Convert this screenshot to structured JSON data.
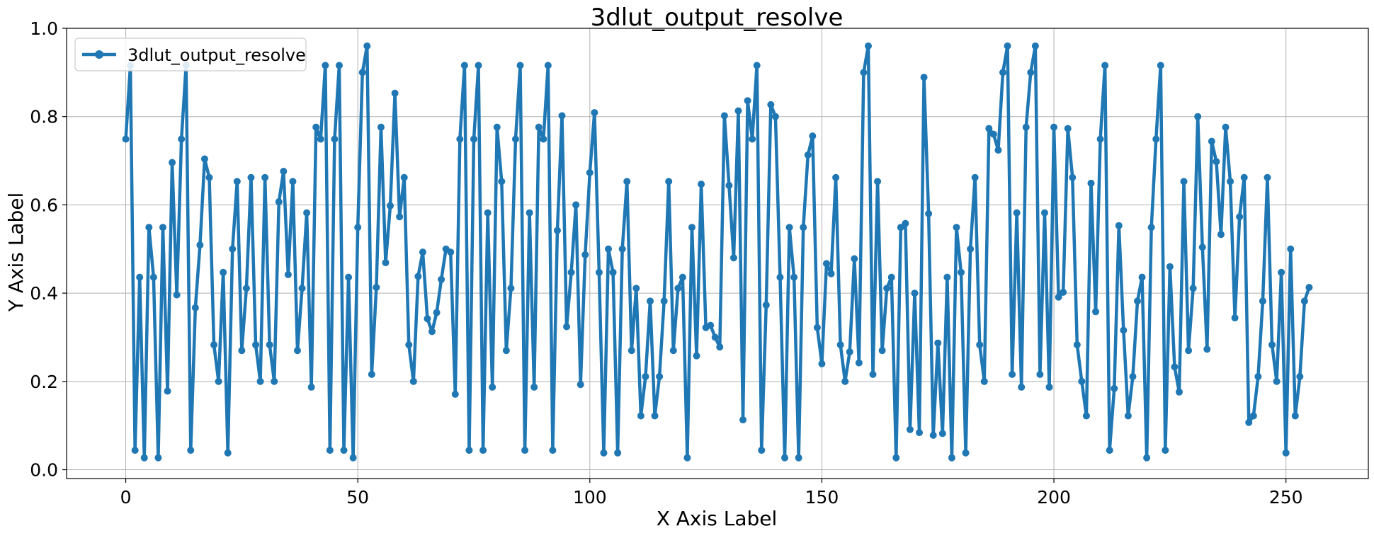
{
  "chart_data": {
    "type": "line",
    "title": "3dlut_output_resolve",
    "xlabel": "X Axis Label",
    "ylabel": "Y Axis Label",
    "xlim": [
      -12.75,
      267.75
    ],
    "ylim": [
      -0.02,
      1.0
    ],
    "xticks": [
      0,
      50,
      100,
      150,
      200,
      250
    ],
    "xtick_labels": [
      "0",
      "50",
      "100",
      "150",
      "200",
      "250"
    ],
    "yticks": [
      0.0,
      0.2,
      0.4,
      0.6,
      0.8,
      1.0
    ],
    "ytick_labels": [
      "0.0",
      "0.2",
      "0.4",
      "0.6",
      "0.8",
      "1.0"
    ],
    "grid": true,
    "legend_position": "top-left",
    "series": [
      {
        "name": "3dlut_output_resolve",
        "color": "#1f77b4",
        "marker": "circle",
        "x": [
          0,
          1,
          2,
          3,
          4,
          5,
          6,
          7,
          8,
          9,
          10,
          11,
          12,
          13,
          14,
          15,
          16,
          17,
          18,
          19,
          20,
          21,
          22,
          23,
          24,
          25,
          26,
          27,
          28,
          29,
          30,
          31,
          32,
          33,
          34,
          35,
          36,
          37,
          38,
          39,
          40,
          41,
          42,
          43,
          44,
          45,
          46,
          47,
          48,
          49,
          50,
          51,
          52,
          53,
          54,
          55,
          56,
          57,
          58,
          59,
          60,
          61,
          62,
          63,
          64,
          65,
          66,
          67,
          68,
          69,
          70,
          71,
          72,
          73,
          74,
          75,
          76,
          77,
          78,
          79,
          80,
          81,
          82,
          83,
          84,
          85,
          86,
          87,
          88,
          89,
          90,
          91,
          92,
          93,
          94,
          95,
          96,
          97,
          98,
          99,
          100,
          101,
          102,
          103,
          104,
          105,
          106,
          107,
          108,
          109,
          110,
          111,
          112,
          113,
          114,
          115,
          116,
          117,
          118,
          119,
          120,
          121,
          122,
          123,
          124,
          125,
          126,
          127,
          128,
          129,
          130,
          131,
          132,
          133,
          134,
          135,
          136,
          137,
          138,
          139,
          140,
          141,
          142,
          143,
          144,
          145,
          146,
          147,
          148,
          149,
          150,
          151,
          152,
          153,
          154,
          155,
          156,
          157,
          158,
          159,
          160,
          161,
          162,
          163,
          164,
          165,
          166,
          167,
          168,
          169,
          170,
          171,
          172,
          173,
          174,
          175,
          176,
          177,
          178,
          179,
          180,
          181,
          182,
          183,
          184,
          185,
          186,
          187,
          188,
          189,
          190,
          191,
          192,
          193,
          194,
          195,
          196,
          197,
          198,
          199,
          200,
          201,
          202,
          203,
          204,
          205,
          206,
          207,
          208,
          209,
          210,
          211,
          212,
          213,
          214,
          215,
          216,
          217,
          218,
          219,
          220,
          221,
          222,
          223,
          224,
          225,
          226,
          227,
          228,
          229,
          230,
          231,
          232,
          233,
          234,
          235,
          236,
          237,
          238,
          239,
          240,
          241,
          242,
          243,
          244,
          245,
          246,
          247,
          248,
          249,
          250,
          251,
          252,
          253,
          254,
          255
        ],
        "y": [
          0.749,
          0.916,
          0.044,
          0.436,
          0.027,
          0.549,
          0.436,
          0.027,
          0.549,
          0.178,
          0.696,
          0.396,
          0.749,
          0.916,
          0.044,
          0.367,
          0.509,
          0.704,
          0.662,
          0.283,
          0.2,
          0.447,
          0.038,
          0.5,
          0.653,
          0.27,
          0.411,
          0.662,
          0.283,
          0.2,
          0.662,
          0.283,
          0.2,
          0.607,
          0.676,
          0.442,
          0.653,
          0.27,
          0.411,
          0.582,
          0.187,
          0.776,
          0.749,
          0.916,
          0.044,
          0.749,
          0.916,
          0.044,
          0.436,
          0.027,
          0.549,
          0.9,
          0.96,
          0.216,
          0.413,
          0.776,
          0.469,
          0.598,
          0.853,
          0.573,
          0.662,
          0.283,
          0.2,
          0.438,
          0.493,
          0.342,
          0.313,
          0.356,
          0.431,
          0.5,
          0.493,
          0.171,
          0.749,
          0.916,
          0.044,
          0.749,
          0.916,
          0.044,
          0.582,
          0.187,
          0.776,
          0.653,
          0.27,
          0.411,
          0.749,
          0.916,
          0.044,
          0.582,
          0.187,
          0.776,
          0.749,
          0.916,
          0.044,
          0.542,
          0.802,
          0.324,
          0.447,
          0.6,
          0.193,
          0.487,
          0.673,
          0.809,
          0.447,
          0.038,
          0.5,
          0.447,
          0.038,
          0.5,
          0.653,
          0.27,
          0.411,
          0.122,
          0.211,
          0.382,
          0.122,
          0.211,
          0.382,
          0.653,
          0.27,
          0.411,
          0.436,
          0.027,
          0.549,
          0.258,
          0.647,
          0.322,
          0.327,
          0.3,
          0.278,
          0.802,
          0.644,
          0.48,
          0.813,
          0.113,
          0.836,
          0.749,
          0.916,
          0.044,
          0.373,
          0.827,
          0.8,
          0.436,
          0.027,
          0.549,
          0.436,
          0.027,
          0.549,
          0.713,
          0.756,
          0.322,
          0.24,
          0.467,
          0.444,
          0.662,
          0.283,
          0.2,
          0.267,
          0.478,
          0.242,
          0.9,
          0.96,
          0.216,
          0.653,
          0.27,
          0.411,
          0.436,
          0.027,
          0.549,
          0.558,
          0.091,
          0.4,
          0.084,
          0.889,
          0.58,
          0.078,
          0.287,
          0.082,
          0.436,
          0.027,
          0.549,
          0.447,
          0.038,
          0.5,
          0.662,
          0.283,
          0.2,
          0.773,
          0.76,
          0.724,
          0.9,
          0.96,
          0.216,
          0.582,
          0.187,
          0.776,
          0.9,
          0.96,
          0.216,
          0.582,
          0.187,
          0.776,
          0.391,
          0.402,
          0.773,
          0.662,
          0.283,
          0.2,
          0.122,
          0.649,
          0.358,
          0.749,
          0.916,
          0.044,
          0.184,
          0.553,
          0.316,
          0.122,
          0.211,
          0.382,
          0.436,
          0.027,
          0.549,
          0.749,
          0.916,
          0.044,
          0.46,
          0.233,
          0.176,
          0.653,
          0.27,
          0.411,
          0.8,
          0.504,
          0.273,
          0.744,
          0.698,
          0.533,
          0.776,
          0.653,
          0.344,
          0.573,
          0.662,
          0.107,
          0.122,
          0.211,
          0.382,
          0.662,
          0.283,
          0.2,
          0.447,
          0.038,
          0.5,
          0.122,
          0.211,
          0.382,
          0.413
        ]
      }
    ]
  }
}
